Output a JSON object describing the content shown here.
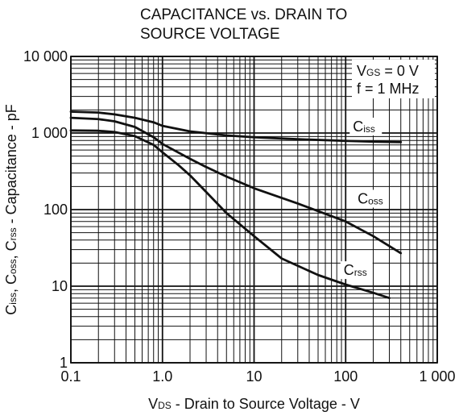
{
  "chart_data": {
    "type": "line",
    "title": [
      "CAPACITANCE vs. DRAIN TO",
      "SOURCE VOLTAGE"
    ],
    "x_scale": "log",
    "y_scale": "log",
    "xlim": [
      0.1,
      1000
    ],
    "ylim": [
      1,
      10000
    ],
    "xlabel": {
      "parts": [
        {
          "text": "V",
          "small": false
        },
        {
          "text": "DS",
          "small": true
        },
        {
          "text": " - Drain to Source Voltage - V",
          "small": false
        }
      ]
    },
    "ylabel": {
      "parts": [
        {
          "text": "C",
          "small": false
        },
        {
          "text": "iss",
          "small": true
        },
        {
          "text": ",  C",
          "small": false
        },
        {
          "text": "oss",
          "small": true
        },
        {
          "text": ",  C",
          "small": false
        },
        {
          "text": "rss",
          "small": true
        },
        {
          "text": " - Capacitance - pF",
          "small": false
        }
      ]
    },
    "x_ticks": [
      {
        "value": 0.1,
        "label": "0.1"
      },
      {
        "value": 1,
        "label": "1.0"
      },
      {
        "value": 10,
        "label": "10"
      },
      {
        "value": 100,
        "label": "100"
      },
      {
        "value": 1000,
        "label": "1 000"
      }
    ],
    "y_ticks": [
      {
        "value": 1,
        "label": "1"
      },
      {
        "value": 10,
        "label": "10"
      },
      {
        "value": 100,
        "label": "100"
      },
      {
        "value": 1000,
        "label": "1 000"
      },
      {
        "value": 10000,
        "label": "10 000"
      }
    ],
    "grid": true,
    "legend_text": {
      "placement": "top-right",
      "lines": [
        [
          {
            "text": "V",
            "small": false
          },
          {
            "text": "GS",
            "small": true
          },
          {
            "text": " = 0 V",
            "small": false
          }
        ],
        [
          {
            "text": "f = 1 MHz",
            "small": false
          }
        ]
      ]
    },
    "series": [
      {
        "name": "Ciss",
        "label_main": "C",
        "label_sub": "iss",
        "label_anchor": {
          "x": 120,
          "y": 1050
        },
        "x": [
          0.1,
          0.2,
          0.3,
          0.5,
          0.8,
          1,
          2,
          5,
          10,
          30,
          100,
          200,
          400
        ],
        "y": [
          1900,
          1850,
          1750,
          1580,
          1380,
          1240,
          1050,
          930,
          880,
          830,
          790,
          770,
          760
        ]
      },
      {
        "name": "Coss",
        "label_main": "C",
        "label_sub": "oss",
        "label_anchor": {
          "x": 135,
          "y": 120
        },
        "x": [
          0.1,
          0.2,
          0.3,
          0.5,
          0.8,
          1,
          2,
          3,
          5,
          10,
          30,
          100,
          200,
          400
        ],
        "y": [
          1580,
          1520,
          1420,
          1200,
          880,
          720,
          460,
          360,
          270,
          190,
          120,
          70,
          45,
          27
        ]
      },
      {
        "name": "Crss",
        "label_main": "C",
        "label_sub": "rss",
        "label_anchor": {
          "x": 95,
          "y": 14
        },
        "x": [
          0.1,
          0.2,
          0.3,
          0.5,
          0.8,
          1,
          1.5,
          2,
          3,
          5,
          10,
          20,
          50,
          100,
          200,
          300
        ],
        "y": [
          1080,
          1070,
          1030,
          910,
          700,
          560,
          380,
          280,
          170,
          90,
          45,
          23,
          14,
          10.5,
          8.2,
          7
        ]
      }
    ],
    "colors": {
      "background": "#ffffff",
      "grid": "#111111",
      "curves": "#111111",
      "text": "#111111"
    }
  }
}
